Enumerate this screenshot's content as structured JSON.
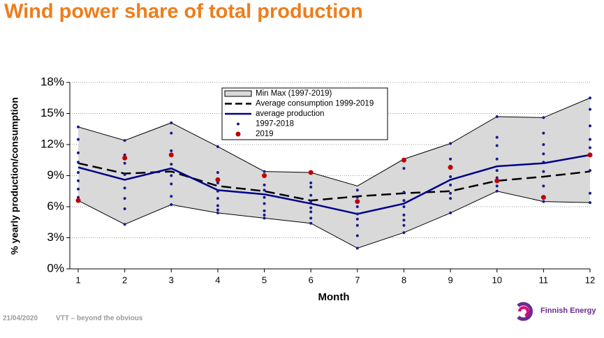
{
  "chart_data": {
    "type": "line",
    "title": "Wind power share of total production",
    "x_label": "Month",
    "y_label": "% yearly production/consumption",
    "x": [
      1,
      2,
      3,
      4,
      5,
      6,
      7,
      8,
      9,
      10,
      11,
      12
    ],
    "xlim": [
      1,
      12
    ],
    "xticks": [
      1,
      2,
      3,
      4,
      5,
      6,
      7,
      8,
      9,
      10,
      11,
      12
    ],
    "ylim": [
      0,
      18
    ],
    "yticks": [
      {
        "value": 0,
        "label": "0%"
      },
      {
        "value": 3,
        "label": "3%"
      },
      {
        "value": 6,
        "label": "6%"
      },
      {
        "value": 9,
        "label": "9%"
      },
      {
        "value": 12,
        "label": "12%"
      },
      {
        "value": 15,
        "label": "15%"
      },
      {
        "value": 18,
        "label": "18%"
      }
    ],
    "grid": true,
    "legend": "top",
    "series": [
      {
        "name": "Min Max (1997-2019)",
        "style": "band",
        "color": "#d9d9d9",
        "max": [
          13.7,
          12.4,
          14.1,
          11.8,
          9.4,
          9.3,
          8.0,
          10.6,
          12.1,
          14.7,
          14.6,
          16.5
        ],
        "min": [
          6.6,
          4.3,
          6.2,
          5.4,
          4.9,
          4.4,
          2.0,
          3.5,
          5.4,
          7.5,
          6.5,
          6.4
        ]
      },
      {
        "name": "Average consumption 1999-2019",
        "style": "dashed",
        "color": "#000000",
        "values": [
          10.2,
          9.2,
          9.4,
          8.0,
          7.5,
          6.6,
          7.0,
          7.3,
          7.5,
          8.5,
          8.9,
          9.4
        ]
      },
      {
        "name": "average production",
        "style": "solid",
        "color": "#00008b",
        "values": [
          9.8,
          8.6,
          9.7,
          7.6,
          7.2,
          6.3,
          5.3,
          6.3,
          8.6,
          9.9,
          10.2,
          11.0
        ]
      },
      {
        "name": "1997-2018",
        "style": "dots",
        "color": "#1a1a8c",
        "x": [
          1,
          1,
          1,
          1,
          1,
          1,
          1,
          1,
          2,
          2,
          2,
          2,
          2,
          2,
          2,
          2,
          3,
          3,
          3,
          3,
          3,
          3,
          3,
          3,
          4,
          4,
          4,
          4,
          4,
          4,
          4,
          4,
          5,
          5,
          5,
          5,
          5,
          5,
          5,
          5,
          6,
          6,
          6,
          6,
          6,
          6,
          6,
          6,
          7,
          7,
          7,
          7,
          7,
          7,
          7,
          7,
          8,
          8,
          8,
          8,
          8,
          8,
          8,
          8,
          9,
          9,
          9,
          9,
          9,
          9,
          9,
          9,
          10,
          10,
          10,
          10,
          10,
          10,
          10,
          10,
          11,
          11,
          11,
          11,
          11,
          11,
          11,
          11,
          12,
          12,
          12,
          12,
          12,
          12,
          12,
          12
        ],
        "values": [
          13.7,
          12.5,
          11.2,
          10.3,
          9.3,
          8.5,
          7.7,
          6.9,
          12.4,
          11.0,
          10.2,
          9.1,
          7.8,
          6.8,
          5.8,
          4.3,
          14.1,
          13.1,
          11.4,
          10.1,
          9.0,
          8.2,
          7.0,
          6.2,
          11.8,
          9.3,
          8.3,
          7.5,
          6.8,
          6.1,
          5.7,
          5.4,
          9.4,
          8.1,
          7.6,
          6.9,
          6.3,
          5.6,
          5.2,
          4.9,
          8.3,
          7.9,
          7.1,
          6.5,
          5.9,
          5.5,
          4.9,
          4.4,
          7.6,
          6.9,
          6.0,
          5.3,
          4.8,
          4.2,
          3.2,
          2.0,
          9.7,
          7.4,
          6.6,
          6.0,
          5.2,
          4.7,
          4.2,
          3.5,
          12.1,
          10.6,
          9.9,
          8.9,
          8.1,
          7.3,
          6.8,
          5.4,
          14.7,
          12.7,
          11.9,
          10.6,
          9.5,
          8.8,
          8.0,
          7.5,
          14.6,
          13.1,
          12.0,
          11.1,
          10.3,
          9.4,
          8.0,
          6.5,
          16.5,
          15.4,
          13.8,
          12.5,
          11.7,
          9.5,
          7.3,
          6.4
        ]
      },
      {
        "name": "2019",
        "style": "dots",
        "color": "#c00000",
        "values": [
          6.6,
          10.7,
          11.0,
          8.6,
          9.0,
          9.3,
          6.5,
          10.5,
          9.8,
          8.5,
          6.9,
          11.0
        ]
      }
    ]
  },
  "footer": {
    "date": "21/04/2020",
    "tagline": "VTT – beyond the obvious",
    "logo": "Finnish Energy"
  }
}
